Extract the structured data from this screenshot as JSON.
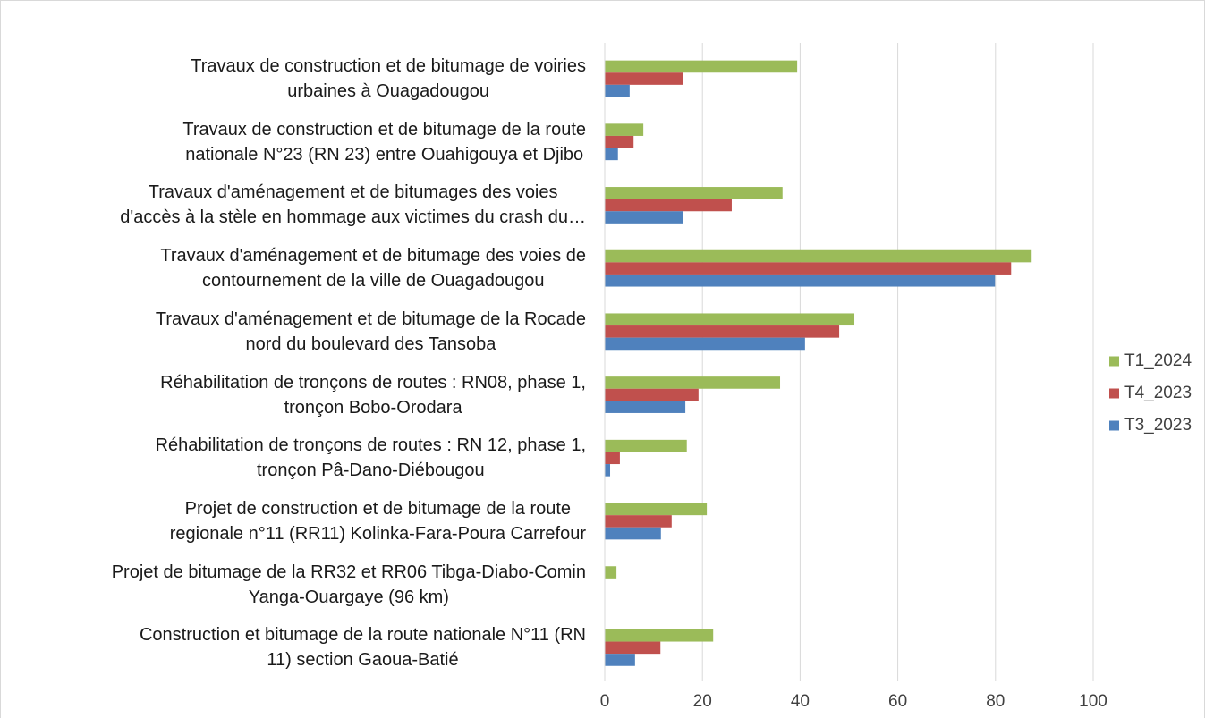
{
  "chart_data": {
    "type": "bar",
    "orientation": "horizontal",
    "categories": [
      "Travaux de construction et de bitumage de voiries\nurbaines à Ouagadougou",
      "Travaux de construction et de bitumage de la route\nnationale N°23 (RN 23) entre Ouahigouya et Djibo",
      "Travaux d'aménagement et de bitumages des voies\nd'accès à la stèle en hommage aux victimes du crash du…",
      "Travaux d'aménagement et de bitumage des voies de\ncontournement de la ville de Ouagadougou",
      "Travaux d'aménagement et de bitumage de la Rocade\nnord du boulevard des Tansoba",
      "Réhabilitation de tronçons de routes : RN08, phase 1,\ntronçon Bobo-Orodara",
      "Réhabilitation de tronçons de routes : RN 12, phase 1,\ntronçon Pâ-Dano-Diébougou",
      "Projet de construction et de bitumage de la route\nregionale n°11 (RR11) Kolinka-Fara-Poura Carrefour",
      "Projet de bitumage de la RR32 et RR06 Tibga-Diabo-Comin\nYanga-Ouargaye (96 km)",
      "Construction et bitumage de la route nationale N°11 (RN\n11) section Gaoua-Batié"
    ],
    "series": [
      {
        "name": "T1_2024",
        "color": "#9bbb59",
        "values": [
          39.4,
          7.9,
          36.4,
          87.4,
          51.1,
          35.9,
          16.8,
          20.9,
          2.4,
          22.2
        ]
      },
      {
        "name": "T4_2023",
        "color": "#c0504d",
        "values": [
          16.1,
          5.9,
          26.0,
          83.2,
          48.0,
          19.2,
          3.1,
          13.7,
          0,
          11.4
        ]
      },
      {
        "name": "T3_2023",
        "color": "#4f81bd",
        "values": [
          5.1,
          2.7,
          16.1,
          79.9,
          41.0,
          16.5,
          1.1,
          11.5,
          0,
          6.2
        ]
      }
    ],
    "xlim": [
      0,
      100
    ],
    "xticks": [
      0,
      20,
      40,
      60,
      80,
      100
    ],
    "grid": true,
    "legend": "right"
  }
}
